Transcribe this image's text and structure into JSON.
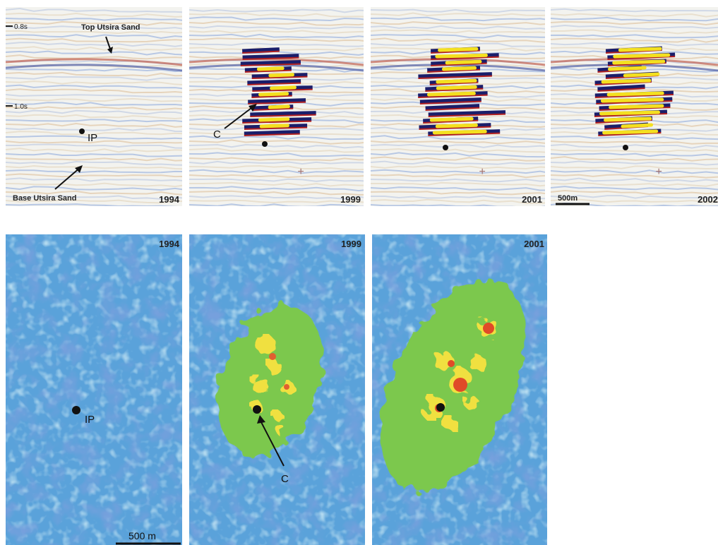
{
  "top_panels": [
    {
      "year": "1994",
      "time_top": "0.8s",
      "time_bottom": "1.0s",
      "top_label": "Top Utsira Sand",
      "base_label": "Base Utsira Sand",
      "point_label": "IP"
    },
    {
      "year": "1999",
      "point_label": "C"
    },
    {
      "year": "2001"
    },
    {
      "year": "2002",
      "scale": "500m"
    }
  ],
  "bottom_panels": [
    {
      "year": "1994",
      "point_label": "IP",
      "scale": "500 m"
    },
    {
      "year": "1999",
      "point_label": "C"
    },
    {
      "year": "2001"
    }
  ]
}
